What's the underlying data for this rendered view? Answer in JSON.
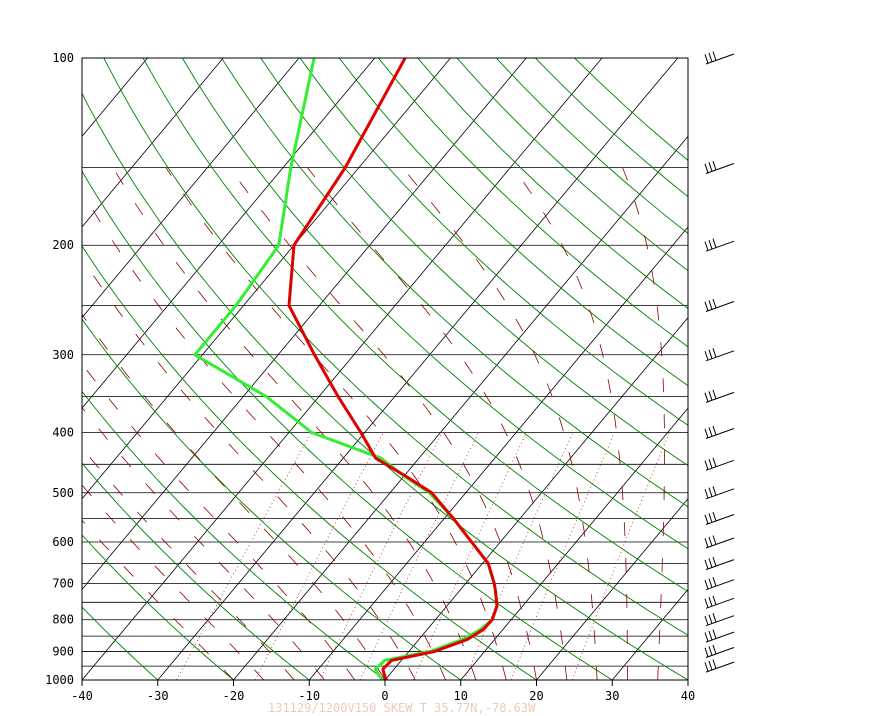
{
  "colors": {
    "background": "#ffffff",
    "isobar": "#000000",
    "isotherm": "#000000",
    "dry_adiabat": "#008000",
    "moist_adiabat": "#8b0000",
    "mixing_ratio": "#b22222",
    "temperature": "#e00000",
    "dewpoint": "#33ee33",
    "wind_barb": "#000000",
    "footer": "#f0c8b8"
  },
  "chart_data": {
    "type": "skew-t",
    "grid": true,
    "x_axis": {
      "range": [
        -40,
        40
      ],
      "ticks": [
        "-40",
        "-30",
        "-20",
        "-10",
        "0",
        "10",
        "20",
        "30",
        "40"
      ]
    },
    "y_axis": {
      "scale": "log-pressure",
      "range": [
        1000,
        100
      ],
      "ticks": [
        "1000",
        "900",
        "800",
        "700",
        "600",
        "500",
        "400",
        "300",
        "200",
        "100"
      ]
    },
    "temperature": {
      "p": [
        1000,
        985,
        960,
        930,
        900,
        860,
        830,
        800,
        760,
        720,
        700,
        650,
        600,
        550,
        500,
        470,
        440,
        400,
        350,
        300,
        250,
        200,
        150,
        100
      ],
      "t": [
        0.2,
        -0.5,
        -1.5,
        -1.3,
        3.4,
        6.4,
        7.4,
        7.5,
        6.6,
        4.8,
        3.8,
        0.8,
        -3.8,
        -8.8,
        -14.5,
        -19.8,
        -25.7,
        -30.5,
        -37.5,
        -45.2,
        -54.0,
        -60.0,
        -61.8,
        -66.0
      ]
    },
    "dewpoint": {
      "p": [
        1000,
        985,
        960,
        930,
        900,
        860,
        830,
        800,
        760,
        720,
        700,
        650,
        600,
        550,
        500,
        470,
        440,
        400,
        350,
        300,
        250,
        200,
        150,
        100
      ],
      "t": [
        -0.3,
        -1.2,
        -2.5,
        -2.2,
        2.8,
        5.8,
        7.0,
        7.5,
        6.6,
        4.8,
        3.8,
        0.8,
        -3.8,
        -8.8,
        -14.8,
        -20.0,
        -25.0,
        -37.0,
        -47.0,
        -61.0,
        -61.0,
        -62.0,
        -69.0,
        -78.0
      ]
    },
    "wind_barbs": [
      "100",
      "150",
      "200",
      "250",
      "300",
      "350",
      "400",
      "450",
      "500",
      "550",
      "600",
      "650",
      "700",
      "750",
      "800",
      "850",
      "900",
      "950"
    ],
    "footer_text": "131129/1200V150  SKEW T  35.77N,-78.63W"
  }
}
